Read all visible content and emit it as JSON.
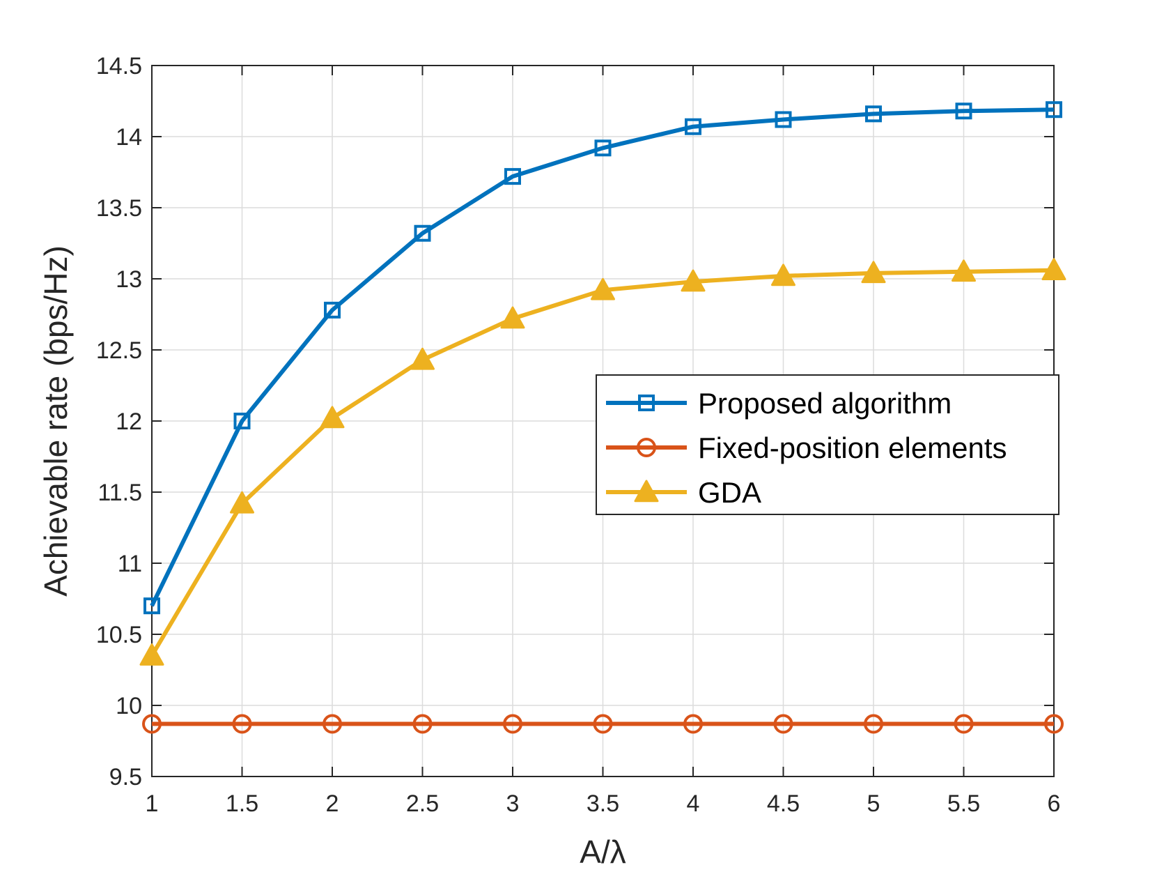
{
  "chart_data": {
    "type": "line",
    "title": "",
    "xlabel": "A/λ",
    "ylabel": "Achievable rate (bps/Hz)",
    "x": [
      1,
      1.5,
      2,
      2.5,
      3,
      3.5,
      4,
      4.5,
      5,
      5.5,
      6
    ],
    "xlim": [
      1,
      6
    ],
    "ylim": [
      9.5,
      14.5
    ],
    "xticks": [
      "1",
      "1.5",
      "2",
      "2.5",
      "3",
      "3.5",
      "4",
      "4.5",
      "5",
      "5.5",
      "6"
    ],
    "yticks": [
      "9.5",
      "10",
      "10.5",
      "11",
      "11.5",
      "12",
      "12.5",
      "13",
      "13.5",
      "14",
      "14.5"
    ],
    "grid": true,
    "legend_position": "center-right",
    "series": [
      {
        "name": "Proposed algorithm",
        "color": "#0072BD",
        "marker": "square",
        "values": [
          10.7,
          12.0,
          12.78,
          13.32,
          13.72,
          13.92,
          14.07,
          14.12,
          14.16,
          14.18,
          14.19
        ]
      },
      {
        "name": "Fixed-position elements",
        "color": "#D95319",
        "marker": "circle",
        "values": [
          9.87,
          9.87,
          9.87,
          9.87,
          9.87,
          9.87,
          9.87,
          9.87,
          9.87,
          9.87,
          9.87
        ]
      },
      {
        "name": "GDA",
        "color": "#EDB120",
        "marker": "triangle",
        "values": [
          10.35,
          11.42,
          12.02,
          12.43,
          12.72,
          12.92,
          12.98,
          13.02,
          13.04,
          13.05,
          13.06
        ]
      }
    ]
  }
}
